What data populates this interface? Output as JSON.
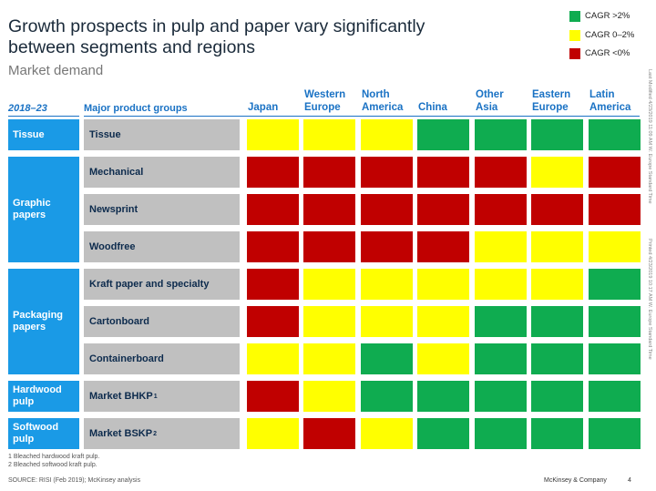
{
  "header": {
    "title": "Growth prospects in pulp and paper vary significantly between segments and regions",
    "subtitle": "Market demand"
  },
  "legend": [
    {
      "label": "CAGR >2%",
      "color": "#0fac50"
    },
    {
      "label": "CAGR 0–2%",
      "color": "#ffff00"
    },
    {
      "label": "CAGR <0%",
      "color": "#c00000"
    }
  ],
  "side_notes": [
    "Last Modified 4/23/2019 11:09 AM W. Europe Standard Time",
    "Printed 4/23/2019 10:17 AM W. Europe Standard Time"
  ],
  "chart_data": {
    "type": "table",
    "period_label": "2018–23",
    "groups_label": "Major product groups",
    "regions": [
      "Japan",
      "Western Europe",
      "North America",
      "China",
      "Other Asia",
      "Eastern Europe",
      "Latin America"
    ],
    "segments": [
      {
        "name": "Tissue",
        "products": [
          "Tissue"
        ]
      },
      {
        "name": "Graphic papers",
        "products": [
          "Mechanical",
          "Newsprint",
          "Woodfree"
        ]
      },
      {
        "name": "Packaging papers",
        "products": [
          "Kraft paper and specialty",
          "Cartonboard",
          "Containerboard"
        ]
      },
      {
        "name": "Hardwood pulp",
        "products": [
          "Market BHKP"
        ]
      },
      {
        "name": "Softwood pulp",
        "products": [
          "Market BSKP"
        ]
      }
    ],
    "product_superscripts": {
      "Market BHKP": "1",
      "Market BSKP": "2"
    },
    "categories": {
      "high": "CAGR >2%",
      "mid": "CAGR 0–2%",
      "low": "CAGR <0%"
    },
    "colors": {
      "high": "#0fac50",
      "mid": "#ffff00",
      "low": "#c00000"
    },
    "rows": [
      {
        "product": "Tissue",
        "values": [
          "mid",
          "mid",
          "mid",
          "high",
          "high",
          "high",
          "high"
        ]
      },
      {
        "product": "Mechanical",
        "values": [
          "low",
          "low",
          "low",
          "low",
          "low",
          "mid",
          "low"
        ]
      },
      {
        "product": "Newsprint",
        "values": [
          "low",
          "low",
          "low",
          "low",
          "low",
          "low",
          "low"
        ]
      },
      {
        "product": "Woodfree",
        "values": [
          "low",
          "low",
          "low",
          "low",
          "mid",
          "mid",
          "mid"
        ]
      },
      {
        "product": "Kraft paper and specialty",
        "values": [
          "low",
          "mid",
          "mid",
          "mid",
          "mid",
          "mid",
          "high"
        ]
      },
      {
        "product": "Cartonboard",
        "values": [
          "low",
          "mid",
          "mid",
          "mid",
          "high",
          "high",
          "high"
        ]
      },
      {
        "product": "Containerboard",
        "values": [
          "mid",
          "mid",
          "high",
          "mid",
          "high",
          "high",
          "high"
        ]
      },
      {
        "product": "Market BHKP",
        "values": [
          "low",
          "mid",
          "high",
          "high",
          "high",
          "high",
          "high"
        ]
      },
      {
        "product": "Market BSKP",
        "values": [
          "mid",
          "low",
          "mid",
          "high",
          "high",
          "high",
          "high"
        ]
      }
    ]
  },
  "footnotes": [
    "1 Bleached hardwood kraft pulp.",
    "2 Bleached softwood kraft pulp."
  ],
  "footer": {
    "source": "SOURCE: RISI (Feb 2019); McKinsey analysis",
    "brand": "McKinsey & Company",
    "page": "4"
  }
}
